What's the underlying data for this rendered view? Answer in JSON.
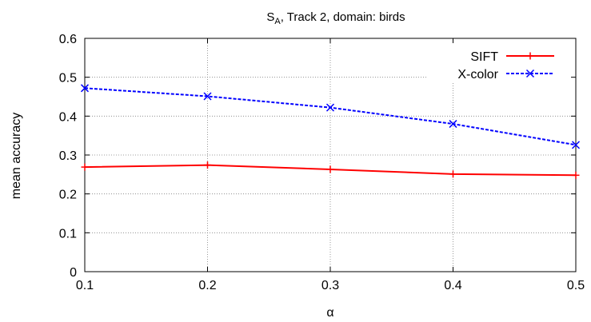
{
  "chart_data": {
    "type": "line",
    "title": {
      "prefix": "S",
      "subscript": "A",
      "suffix": ", Track 2, domain: birds"
    },
    "xlabel": "α",
    "ylabel": "mean accuracy",
    "xlim": [
      0.1,
      0.5
    ],
    "ylim": [
      0,
      0.6
    ],
    "x_ticks": [
      "0.1",
      "0.2",
      "0.3",
      "0.4",
      "0.5"
    ],
    "y_ticks": [
      "0",
      "0.1",
      "0.2",
      "0.3",
      "0.4",
      "0.5",
      "0.6"
    ],
    "grid": true,
    "legend_position": "top-right",
    "x": [
      0.1,
      0.2,
      0.3,
      0.4,
      0.5
    ],
    "series": [
      {
        "name": "SIFT",
        "values": [
          0.269,
          0.274,
          0.263,
          0.251,
          0.248
        ],
        "color": "#ff0000",
        "marker": "plus",
        "line_style": "solid"
      },
      {
        "name": "X-color",
        "values": [
          0.472,
          0.451,
          0.422,
          0.38,
          0.326
        ],
        "color": "#0000ff",
        "marker": "cross",
        "line_style": "dashed"
      }
    ]
  }
}
